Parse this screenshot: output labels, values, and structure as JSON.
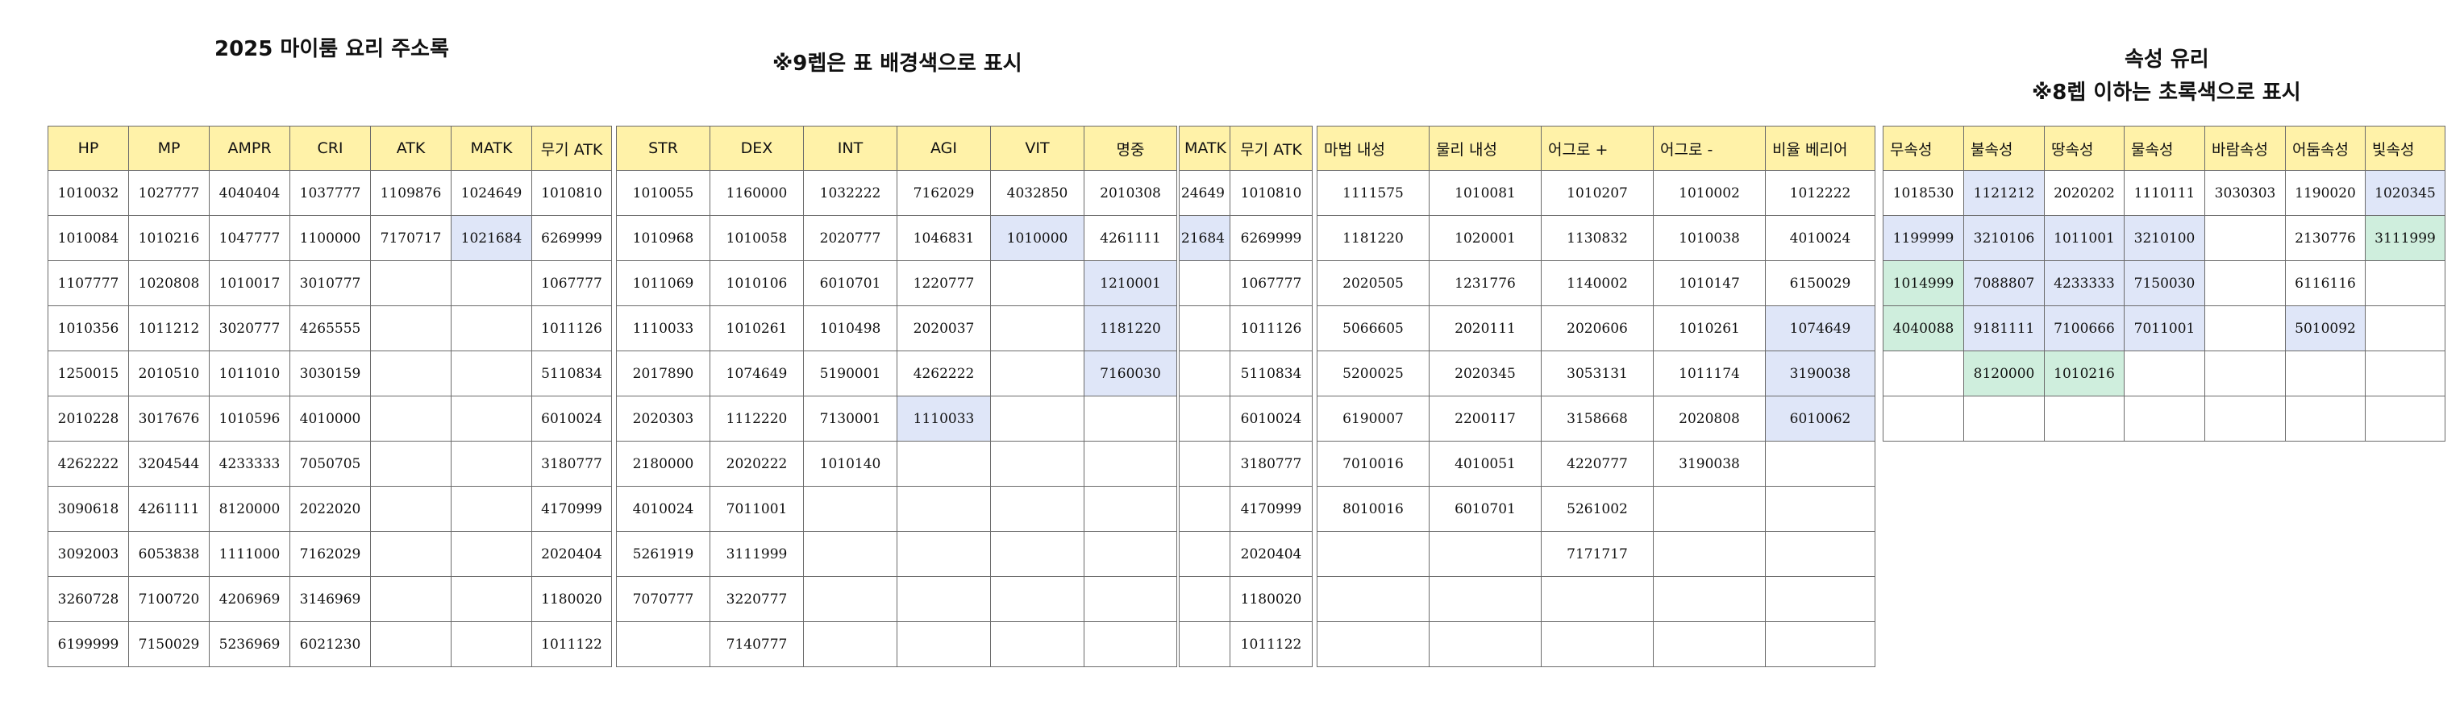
{
  "titles": {
    "main": "2025 마이룸 요리 주소록",
    "note9": "※9렙은 표 배경색으로 표시",
    "attr": "속성 유리",
    "note8": "※8렙 이하는 초록색으로 표시"
  },
  "colors": {
    "header": "#fff2a8",
    "lv9": "#dfe6f8",
    "lv8": "#cfeedd",
    "border": "#6b6b6b"
  },
  "table1": {
    "headers": [
      "HP",
      "MP",
      "AMPR",
      "CRI",
      "ATK",
      "MATK",
      "무기 ATK"
    ],
    "rows": [
      [
        "1010032",
        "1027777",
        "4040404",
        "1037777",
        "1109876",
        "1024649",
        "1010810"
      ],
      [
        "1010084",
        "1010216",
        "1047777",
        "1100000",
        "7170717",
        "1021684",
        "6269999"
      ],
      [
        "1107777",
        "1020808",
        "1010017",
        "3010777",
        "",
        "",
        "1067777"
      ],
      [
        "1010356",
        "1011212",
        "3020777",
        "4265555",
        "",
        "",
        "1011126"
      ],
      [
        "1250015",
        "2010510",
        "1011010",
        "3030159",
        "",
        "",
        "5110834"
      ],
      [
        "2010228",
        "3017676",
        "1010596",
        "4010000",
        "",
        "",
        "6010024"
      ],
      [
        "4262222",
        "3204544",
        "4233333",
        "7050705",
        "",
        "",
        "3180777"
      ],
      [
        "3090618",
        "4261111",
        "8120000",
        "2022020",
        "",
        "",
        "4170999"
      ],
      [
        "3092003",
        "6053838",
        "1111000",
        "7162029",
        "",
        "",
        "2020404"
      ],
      [
        "3260728",
        "7100720",
        "4206969",
        "3146969",
        "",
        "",
        "1180020"
      ],
      [
        "6199999",
        "7150029",
        "5236969",
        "6021230",
        "",
        "",
        "1011122"
      ]
    ]
  },
  "table2": {
    "headers": [
      "STR",
      "DEX",
      "INT",
      "AGI",
      "VIT",
      "명중"
    ],
    "rows": [
      [
        "1010055",
        "1160000",
        "1032222",
        "7162029",
        "4032850",
        "2010308"
      ],
      [
        "1010968",
        "1010058",
        "2020777",
        "1046831",
        "1010000",
        "4261111"
      ],
      [
        "1011069",
        "1010106",
        "6010701",
        "1220777",
        "",
        "1210001"
      ],
      [
        "1110033",
        "1010261",
        "1010498",
        "2020037",
        "",
        "1181220"
      ],
      [
        "2017890",
        "1074649",
        "5190001",
        "4262222",
        "",
        "7160030"
      ],
      [
        "2020303",
        "1112220",
        "7130001",
        "1110033",
        "",
        ""
      ],
      [
        "2180000",
        "2020222",
        "1010140",
        "",
        "",
        ""
      ],
      [
        "4010024",
        "7011001",
        "",
        "",
        "",
        ""
      ],
      [
        "5261919",
        "3111999",
        "",
        "",
        "",
        ""
      ],
      [
        "7070777",
        "3220777",
        "",
        "",
        "",
        ""
      ],
      [
        "",
        "7140777",
        "",
        "",
        "",
        ""
      ]
    ]
  },
  "table3": {
    "headers": [
      "MATK",
      "무기 ATK"
    ],
    "rows": [
      [
        "24649",
        "1010810"
      ],
      [
        "21684",
        "6269999"
      ],
      [
        "",
        "1067777"
      ],
      [
        "",
        "1011126"
      ],
      [
        "",
        "5110834"
      ],
      [
        "",
        "6010024"
      ],
      [
        "",
        "3180777"
      ],
      [
        "",
        "4170999"
      ],
      [
        "",
        "2020404"
      ],
      [
        "",
        "1180020"
      ],
      [
        "",
        "1011122"
      ]
    ]
  },
  "table4": {
    "headers": [
      "마법 내성",
      "물리 내성",
      "어그로 +",
      "어그로 -",
      "비율 베리어"
    ],
    "rows": [
      [
        "1111575",
        "1010081",
        "1010207",
        "1010002",
        "1012222"
      ],
      [
        "1181220",
        "1020001",
        "1130832",
        "1010038",
        "4010024"
      ],
      [
        "2020505",
        "1231776",
        "1140002",
        "1010147",
        "6150029"
      ],
      [
        "5066605",
        "2020111",
        "2020606",
        "1010261",
        "1074649"
      ],
      [
        "5200025",
        "2020345",
        "3053131",
        "1011174",
        "3190038"
      ],
      [
        "6190007",
        "2200117",
        "3158668",
        "2020808",
        "6010062"
      ],
      [
        "7010016",
        "4010051",
        "4220777",
        "3190038",
        ""
      ],
      [
        "8010016",
        "6010701",
        "5261002",
        "",
        ""
      ],
      [
        "",
        "",
        "7171717",
        "",
        ""
      ],
      [
        "",
        "",
        "",
        "",
        ""
      ],
      [
        "",
        "",
        "",
        "",
        ""
      ]
    ]
  },
  "table5": {
    "headers": [
      "무속성",
      "불속성",
      "땅속성",
      "물속성",
      "바람속성",
      "어둠속성",
      "빛속성"
    ],
    "rows": [
      [
        "1018530",
        "1121212",
        "2020202",
        "1110111",
        "3030303",
        "1190020",
        "1020345"
      ],
      [
        "1199999",
        "3210106",
        "1011001",
        "3210100",
        "",
        "2130776",
        "3111999"
      ],
      [
        "1014999",
        "7088807",
        "4233333",
        "7150030",
        "",
        "6116116",
        ""
      ],
      [
        "4040088",
        "9181111",
        "7100666",
        "7011001",
        "",
        "5010092",
        ""
      ],
      [
        "",
        "8120000",
        "1010216",
        "",
        "",
        "",
        ""
      ],
      [
        "",
        "",
        "",
        "",
        "",
        "",
        ""
      ]
    ]
  }
}
